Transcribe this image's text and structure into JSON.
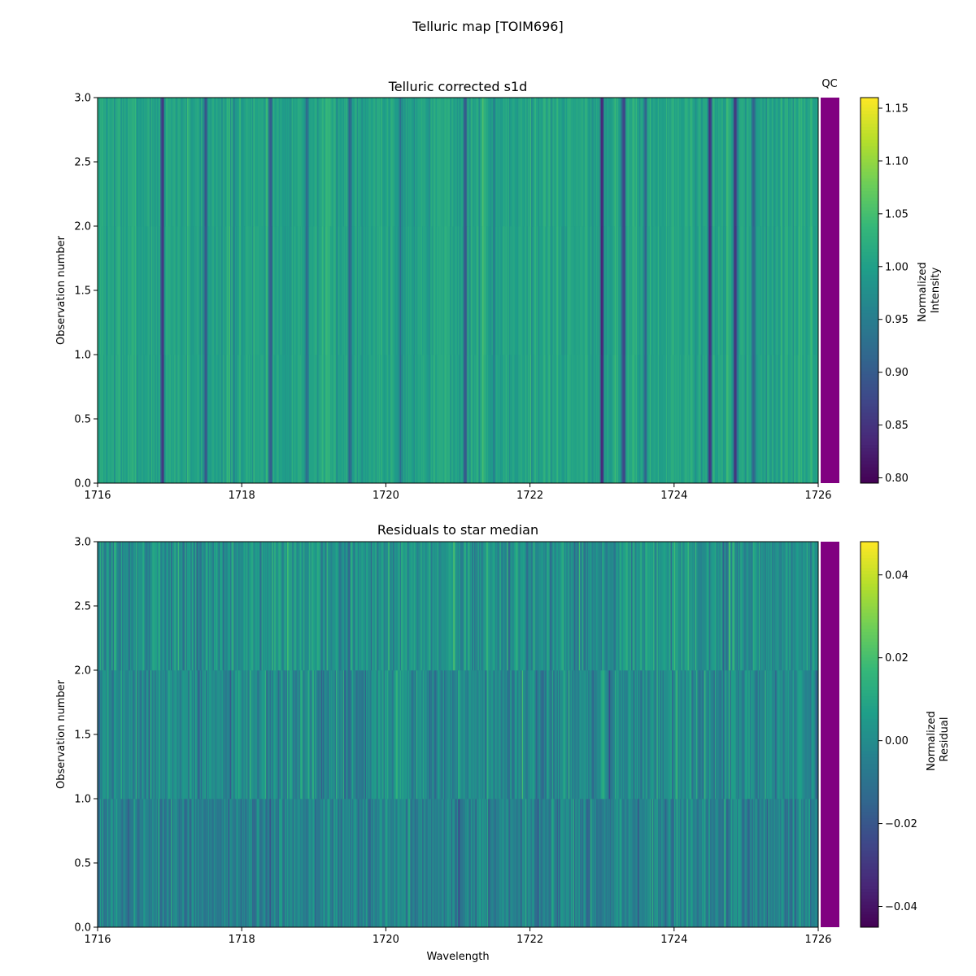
{
  "figure_title": "Telluric map [TOIM696]",
  "qc_label": "QC",
  "colors": {
    "qc_fill": "#800080",
    "viridis": [
      "#440154",
      "#482878",
      "#3e4989",
      "#31688e",
      "#26828e",
      "#1f9e89",
      "#35b779",
      "#6ece58",
      "#b5de2b",
      "#fde725"
    ]
  },
  "chart_data": [
    {
      "type": "heatmap",
      "title": "Telluric corrected s1d",
      "xlabel": "",
      "ylabel": "Observation number",
      "xlim": [
        1716,
        1726
      ],
      "ylim": [
        0,
        3
      ],
      "x_ticks": [
        "1716",
        "1718",
        "1720",
        "1722",
        "1724",
        "1726"
      ],
      "y_ticks": [
        "0.0",
        "0.5",
        "1.0",
        "1.5",
        "2.0",
        "2.5",
        "3.0"
      ],
      "rows": 3,
      "colorbar": {
        "label_lines": [
          "Normalized",
          "Intensity"
        ],
        "range": [
          0.795,
          1.16
        ],
        "ticks": [
          "0.80",
          "0.85",
          "0.90",
          "0.95",
          "1.00",
          "1.05",
          "1.10",
          "1.15"
        ],
        "tick_values": [
          0.8,
          0.85,
          0.9,
          0.95,
          1.0,
          1.05,
          1.1,
          1.15
        ]
      },
      "baseline": 1.0,
      "absorption_lines": [
        {
          "x": 1716.9,
          "depth": 0.17
        },
        {
          "x": 1717.5,
          "depth": 0.13
        },
        {
          "x": 1717.9,
          "depth": 0.06
        },
        {
          "x": 1718.4,
          "depth": 0.1
        },
        {
          "x": 1718.9,
          "depth": 0.08
        },
        {
          "x": 1719.5,
          "depth": 0.1
        },
        {
          "x": 1720.2,
          "depth": 0.08
        },
        {
          "x": 1721.1,
          "depth": 0.12
        },
        {
          "x": 1721.5,
          "depth": 0.06
        },
        {
          "x": 1723.0,
          "depth": 0.18
        },
        {
          "x": 1723.3,
          "depth": 0.15
        },
        {
          "x": 1723.6,
          "depth": 0.09
        },
        {
          "x": 1724.5,
          "depth": 0.18
        },
        {
          "x": 1724.85,
          "depth": 0.17
        },
        {
          "x": 1725.1,
          "depth": 0.1
        }
      ]
    },
    {
      "type": "heatmap",
      "title": "Residuals to star median",
      "xlabel": "Wavelength",
      "ylabel": "Observation number",
      "xlim": [
        1716,
        1726
      ],
      "ylim": [
        0,
        3
      ],
      "x_ticks": [
        "1716",
        "1718",
        "1720",
        "1722",
        "1724",
        "1726"
      ],
      "y_ticks": [
        "0.0",
        "0.5",
        "1.0",
        "1.5",
        "2.0",
        "2.5",
        "3.0"
      ],
      "rows": 3,
      "colorbar": {
        "label_lines": [
          "Normalized",
          "Residual"
        ],
        "range": [
          -0.045,
          0.048
        ],
        "ticks": [
          "−0.04",
          "−0.02",
          "0.00",
          "0.02",
          "0.04"
        ],
        "tick_values": [
          -0.04,
          -0.02,
          0.0,
          0.02,
          0.04
        ]
      },
      "baseline": 0.0
    }
  ]
}
